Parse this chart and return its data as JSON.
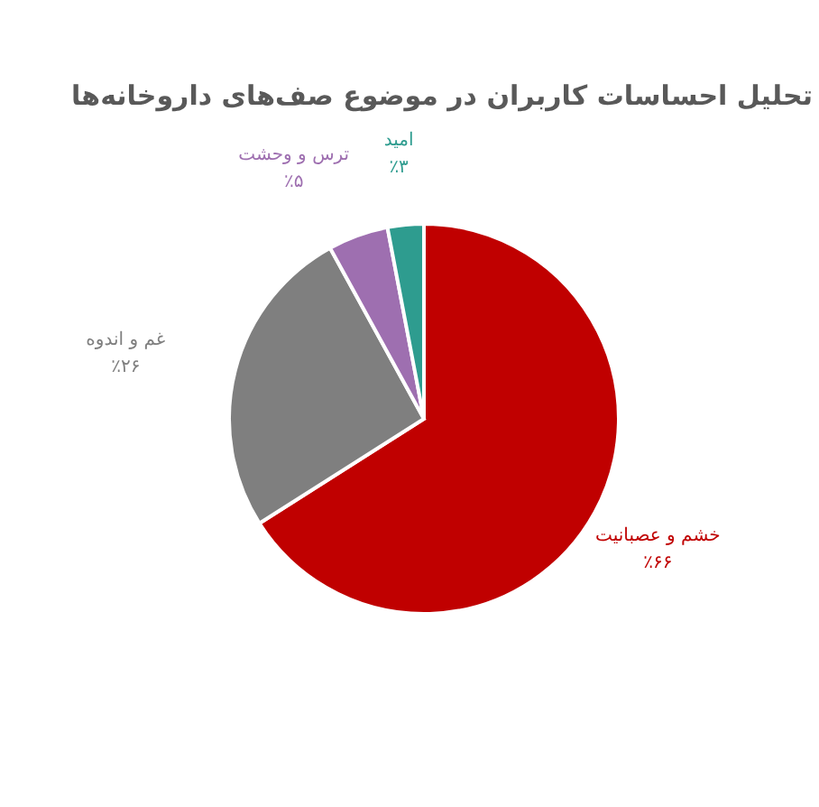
{
  "chart_data": {
    "type": "pie",
    "title": "تحلیل احساسات کاربران در موضوع صف‌های داروخانه‌ها",
    "categories": [
      "خشم و عصبانیت",
      "غم و اندوه",
      "ترس و وحشت",
      "امید"
    ],
    "values": [
      66,
      26,
      5,
      3
    ],
    "colors": [
      "#c00000",
      "#7f7f7f",
      "#9e6fb0",
      "#2e9c8f"
    ],
    "value_labels": [
      "٪۶۶",
      "٪۲۶",
      "٪۵",
      "٪۳"
    ]
  }
}
